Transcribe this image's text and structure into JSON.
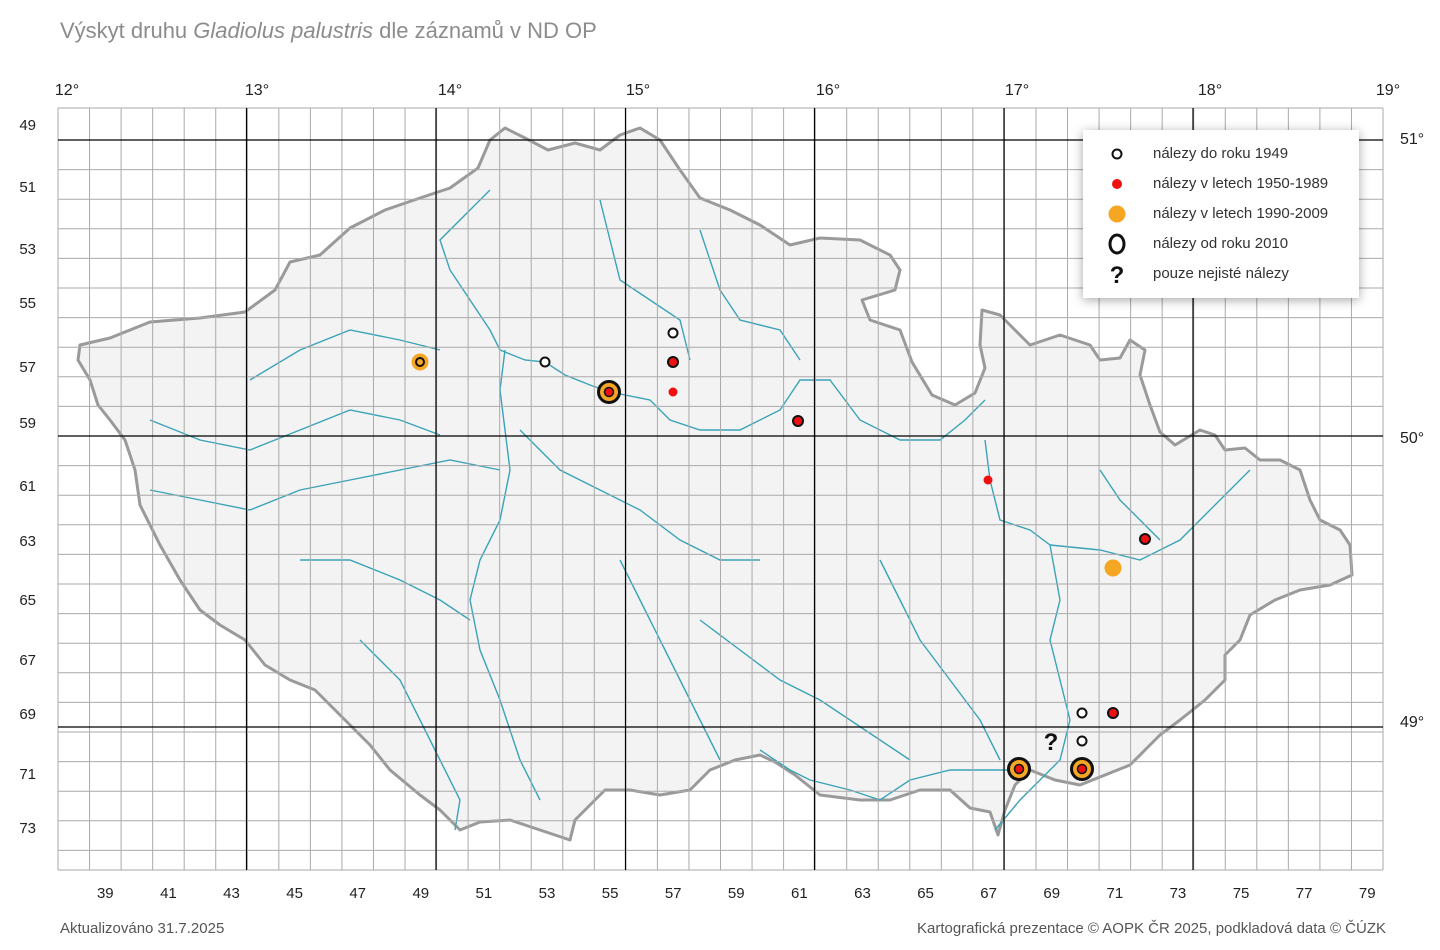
{
  "title": {
    "prefix": "Výskyt druhu ",
    "species": "Gladiolus palustris",
    "suffix": " dle záznamů v ND OP"
  },
  "top_degrees": [
    "12°",
    "13°",
    "14°",
    "15°",
    "16°",
    "17°",
    "18°",
    "19°"
  ],
  "right_degrees": [
    "51°",
    "50°",
    "49°"
  ],
  "bottom_ticks": [
    "39",
    "41",
    "43",
    "45",
    "47",
    "49",
    "51",
    "53",
    "55",
    "57",
    "59",
    "61",
    "63",
    "65",
    "67",
    "69",
    "71",
    "73",
    "75",
    "77",
    "79"
  ],
  "left_ticks": [
    "49",
    "51",
    "53",
    "55",
    "57",
    "59",
    "61",
    "63",
    "65",
    "67",
    "69",
    "71",
    "73"
  ],
  "legend": {
    "items": [
      {
        "label": "nálezy do roku 1949",
        "symbol": "open-circle-small-icon"
      },
      {
        "label": "nálezy v letech 1950-1989",
        "symbol": "red-dot-icon"
      },
      {
        "label": "nálezy v letech 1990-2009",
        "symbol": "orange-dot-icon"
      },
      {
        "label": "nálezy od roku 2010",
        "symbol": "black-ring-icon"
      },
      {
        "label": "pouze nejisté nálezy",
        "symbol": "question-mark-icon"
      }
    ]
  },
  "colors": {
    "grid": "#aaaaaa",
    "major_grid": "#000000",
    "river": "#3aa3b8",
    "border": "#9a9a9a",
    "red": "#ee1111",
    "orange": "#f5a623"
  },
  "footer": {
    "updated": "Aktualizováno 31.7.2025",
    "credit": "Kartografická prezentace © AOPK ČR 2025, podkladová data © ČÚZK"
  }
}
